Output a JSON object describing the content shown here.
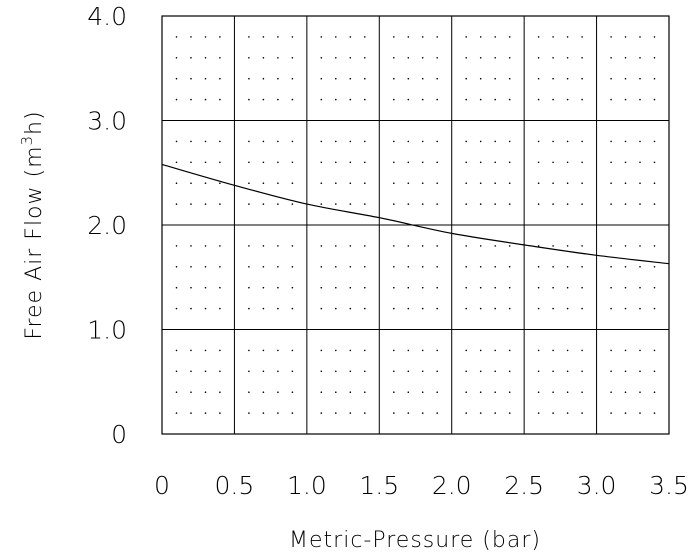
{
  "chart_data": {
    "type": "line",
    "title": "",
    "xlabel": "Metric-Pressure (bar)",
    "ylabel_main": "Free Air Flow (m",
    "ylabel_sup": "3",
    "ylabel_end": "h)",
    "xlim": [
      0,
      3.5
    ],
    "ylim": [
      0,
      4.0
    ],
    "x_ticks": [
      0,
      0.5,
      1.0,
      1.5,
      2.0,
      2.5,
      3.0,
      3.5
    ],
    "x_tick_labels": [
      "0",
      "0.5",
      "1.0",
      "1.5",
      "2.0",
      "2.5",
      "3.0",
      "3.5"
    ],
    "y_ticks": [
      0,
      1.0,
      2.0,
      3.0,
      4.0
    ],
    "y_tick_labels": [
      "0",
      "1.0",
      "2.0",
      "3.0",
      "4.0"
    ],
    "grid": true,
    "minor_dot_grid": true,
    "legend": "none",
    "series": [
      {
        "x": [
          0,
          0.5,
          1.0,
          1.5,
          2.0,
          2.5,
          3.0,
          3.5
        ],
        "values": [
          2.58,
          2.38,
          2.2,
          2.07,
          1.92,
          1.81,
          1.71,
          1.63
        ]
      }
    ]
  }
}
